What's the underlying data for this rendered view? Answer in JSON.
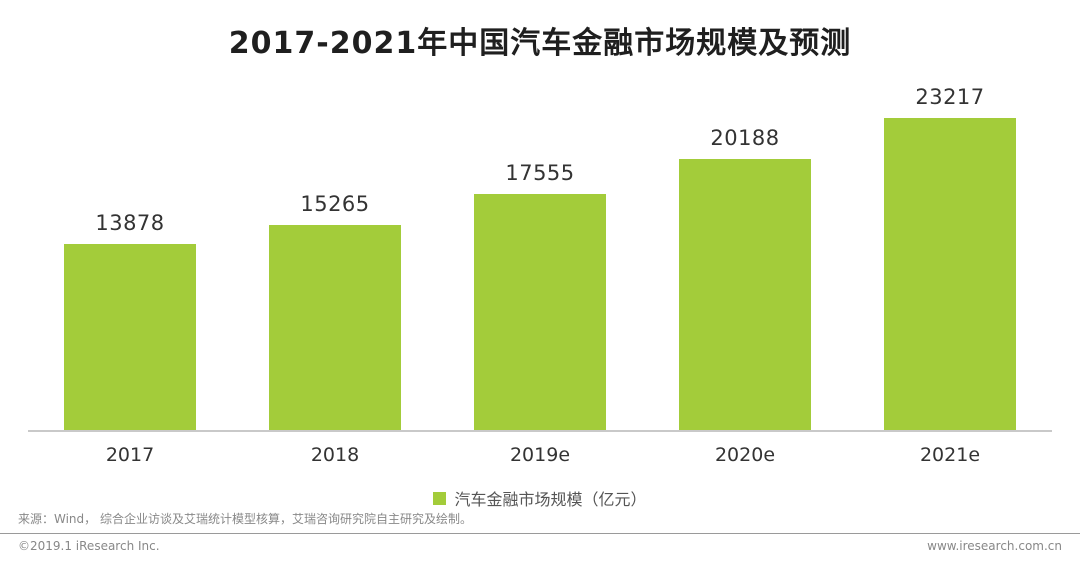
{
  "chart_data": {
    "type": "bar",
    "title": "2017-2021年中国汽车金融市场规模及预测",
    "categories": [
      "2017",
      "2018",
      "2019e",
      "2020e",
      "2021e"
    ],
    "values": [
      13878,
      15265,
      17555,
      20188,
      23217
    ],
    "series_name": "汽车金融市场规模（亿元）",
    "legend": [
      "汽车金融市场规模（亿元）"
    ],
    "legend_position": "bottom",
    "grid": false,
    "ylim": [
      0,
      23217
    ],
    "bar_color": "#a3cc3a",
    "axis_color": "#c9c9c9"
  },
  "footer": {
    "source": "来源：Wind， 综合企业访谈及艾瑞统计模型核算，艾瑞咨询研究院自主研究及绘制。",
    "copyright": "©2019.1 iResearch Inc.",
    "website": "www.iresearch.com.cn"
  }
}
